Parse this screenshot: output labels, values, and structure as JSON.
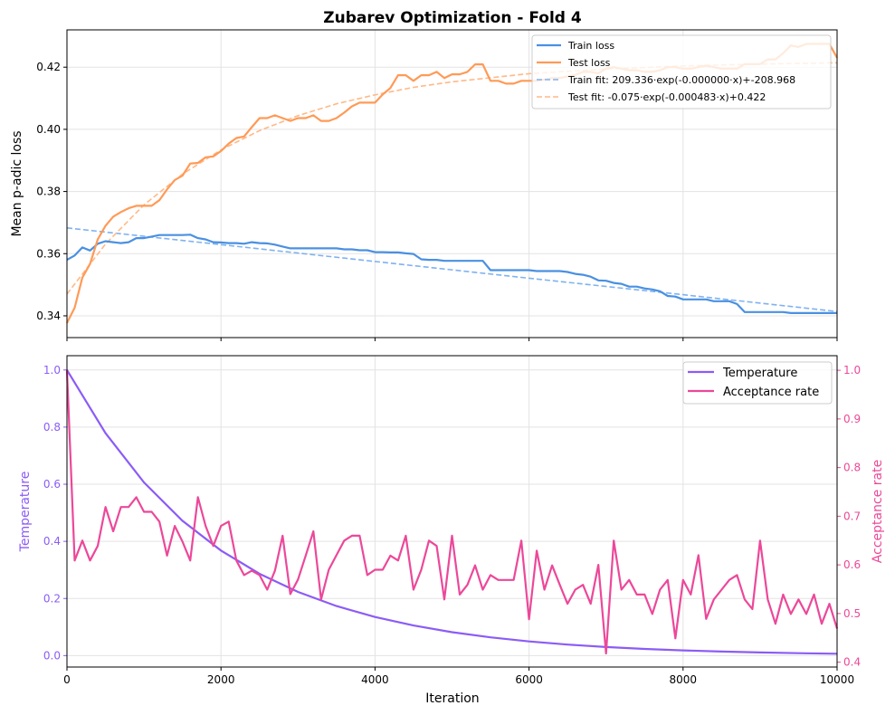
{
  "chart_data": [
    {
      "type": "line",
      "title": "Zubarev Optimization - Fold 4",
      "xlabel": "",
      "ylabel": "Mean p-adic loss",
      "xlim": [
        0,
        10000
      ],
      "ylim": [
        0.333,
        0.432
      ],
      "x_ticks": [
        0,
        2000,
        4000,
        6000,
        8000,
        10000
      ],
      "y_ticks": [
        "0.34",
        "0.36",
        "0.38",
        "0.40",
        "0.42"
      ],
      "grid": true,
      "legend_position": "top-right",
      "colors": {
        "train": "#4a90e2",
        "test": "#ff9a56",
        "train_fit": "#7fb2f0",
        "test_fit": "#ffb987"
      },
      "x": [
        0,
        100,
        200,
        300,
        400,
        500,
        600,
        700,
        800,
        900,
        1000,
        1100,
        1200,
        1300,
        1400,
        1500,
        1600,
        1700,
        1800,
        1900,
        2000,
        2100,
        2200,
        2300,
        2400,
        2500,
        2600,
        2700,
        2800,
        2900,
        3000,
        3100,
        3200,
        3300,
        3400,
        3500,
        3600,
        3700,
        3800,
        3900,
        4000,
        4100,
        4200,
        4300,
        4400,
        4500,
        4600,
        4700,
        4800,
        4900,
        5000,
        5100,
        5200,
        5300,
        5400,
        5500,
        5600,
        5700,
        5800,
        5900,
        6000,
        6100,
        6200,
        6300,
        6400,
        6500,
        6600,
        6700,
        6800,
        6900,
        7000,
        7100,
        7200,
        7300,
        7400,
        7500,
        7600,
        7700,
        7800,
        7900,
        8000,
        8100,
        8200,
        8300,
        8400,
        8500,
        8600,
        8700,
        8800,
        8900,
        9000,
        9100,
        9200,
        9300,
        9400,
        9500,
        9600,
        9700,
        9800,
        9900,
        10000
      ],
      "series": [
        {
          "name": "Train loss",
          "style": "solid",
          "values": [
            0.358,
            0.3594,
            0.362,
            0.361,
            0.3632,
            0.364,
            0.3637,
            0.3634,
            0.3637,
            0.365,
            0.365,
            0.3655,
            0.366,
            0.366,
            0.366,
            0.366,
            0.3661,
            0.365,
            0.3646,
            0.3637,
            0.3636,
            0.3634,
            0.3634,
            0.3632,
            0.3637,
            0.3634,
            0.3633,
            0.3629,
            0.3623,
            0.3617,
            0.3617,
            0.3617,
            0.3617,
            0.3617,
            0.3617,
            0.3617,
            0.3614,
            0.3614,
            0.3611,
            0.3611,
            0.3605,
            0.3605,
            0.3604,
            0.3604,
            0.3601,
            0.3599,
            0.3582,
            0.358,
            0.358,
            0.3577,
            0.3577,
            0.3577,
            0.3577,
            0.3577,
            0.3577,
            0.3547,
            0.3547,
            0.3547,
            0.3547,
            0.3547,
            0.3547,
            0.3544,
            0.3544,
            0.3544,
            0.3544,
            0.3541,
            0.3535,
            0.3532,
            0.3526,
            0.3514,
            0.3513,
            0.3506,
            0.3503,
            0.3494,
            0.3494,
            0.3488,
            0.3485,
            0.3479,
            0.3464,
            0.3462,
            0.3453,
            0.3453,
            0.3453,
            0.3453,
            0.3447,
            0.3447,
            0.3447,
            0.3438,
            0.3412,
            0.3412,
            0.3412,
            0.3412,
            0.3412,
            0.3412,
            0.3409,
            0.3409,
            0.3409,
            0.3409,
            0.3409,
            0.3409,
            0.3409
          ]
        },
        {
          "name": "Test loss",
          "style": "solid",
          "values": [
            0.3377,
            0.3426,
            0.3523,
            0.3567,
            0.3646,
            0.369,
            0.3719,
            0.3734,
            0.3746,
            0.3754,
            0.3754,
            0.3754,
            0.3772,
            0.3807,
            0.3837,
            0.3851,
            0.389,
            0.3892,
            0.391,
            0.3913,
            0.393,
            0.3954,
            0.3972,
            0.3977,
            0.4007,
            0.4036,
            0.4036,
            0.4045,
            0.4036,
            0.4027,
            0.4036,
            0.4036,
            0.4045,
            0.4027,
            0.4027,
            0.4036,
            0.4054,
            0.4074,
            0.4086,
            0.4086,
            0.4086,
            0.4112,
            0.4133,
            0.4174,
            0.4174,
            0.4156,
            0.4174,
            0.4174,
            0.4185,
            0.4165,
            0.4177,
            0.4177,
            0.4185,
            0.4209,
            0.4209,
            0.4156,
            0.4156,
            0.4147,
            0.4147,
            0.4156,
            0.4156,
            0.4156,
            0.416,
            0.4165,
            0.4165,
            0.417,
            0.4175,
            0.4185,
            0.4185,
            0.418,
            0.4195,
            0.42,
            0.4195,
            0.419,
            0.419,
            0.4185,
            0.4185,
            0.419,
            0.42,
            0.42,
            0.4195,
            0.4195,
            0.42,
            0.4205,
            0.42,
            0.4195,
            0.4195,
            0.4195,
            0.421,
            0.421,
            0.421,
            0.4225,
            0.4225,
            0.4245,
            0.427,
            0.4265,
            0.4275,
            0.4275,
            0.4275,
            0.4275,
            0.423
          ]
        },
        {
          "name": "Train fit: 209.336·exp(-0.000000·x)+-208.968",
          "style": "dashed",
          "x": [
            0,
            2000,
            4000,
            6000,
            8000,
            10000
          ],
          "values": [
            0.3683,
            0.3629,
            0.3575,
            0.3521,
            0.3468,
            0.3414
          ]
        },
        {
          "name": "Test fit: -0.075·exp(-0.000483·x)+0.422",
          "style": "dashed",
          "x": [
            0,
            500,
            1000,
            1500,
            2000,
            2500,
            3000,
            3500,
            4000,
            4500,
            5000,
            6000,
            7000,
            8000,
            9000,
            10000
          ],
          "values": [
            0.347,
            0.3631,
            0.3757,
            0.3856,
            0.3934,
            0.3996,
            0.4044,
            0.4082,
            0.4111,
            0.4135,
            0.4153,
            0.4179,
            0.4194,
            0.4204,
            0.421,
            0.4214
          ]
        }
      ]
    },
    {
      "type": "line",
      "xlabel": "Iteration",
      "ylabel": "Temperature",
      "ylabel_right": "Acceptance rate",
      "xlim": [
        0,
        10000
      ],
      "ylim": [
        -0.04,
        1.05
      ],
      "ylim_right": [
        0.39,
        1.03
      ],
      "x_ticks": [
        "0",
        "2000",
        "4000",
        "6000",
        "8000",
        "10000"
      ],
      "y_ticks": [
        "0.0",
        "0.2",
        "0.4",
        "0.6",
        "0.8",
        "1.0"
      ],
      "y_ticks_right": [
        "0.4",
        "0.5",
        "0.6",
        "0.7",
        "0.8",
        "0.9",
        "1.0"
      ],
      "grid": true,
      "legend_position": "top-right",
      "colors": {
        "temperature": "#8b5cf6",
        "acceptance": "#ec4899"
      },
      "series": [
        {
          "name": "Temperature",
          "axis": "left",
          "x": [
            0,
            500,
            1000,
            1500,
            2000,
            2500,
            3000,
            3500,
            4000,
            4500,
            5000,
            5500,
            6000,
            6500,
            7000,
            7500,
            8000,
            8500,
            9000,
            9500,
            10000
          ],
          "values": [
            1.0,
            0.7787,
            0.6064,
            0.4722,
            0.3677,
            0.2863,
            0.223,
            0.1736,
            0.1352,
            0.1053,
            0.082,
            0.0638,
            0.0497,
            0.0387,
            0.0301,
            0.0235,
            0.0183,
            0.0142,
            0.0111,
            0.0086,
            0.0067
          ]
        },
        {
          "name": "Acceptance rate",
          "axis": "right",
          "x_step": 100,
          "values": [
            1.0,
            0.609,
            0.65,
            0.609,
            0.639,
            0.719,
            0.669,
            0.719,
            0.719,
            0.739,
            0.709,
            0.709,
            0.689,
            0.619,
            0.68,
            0.648,
            0.609,
            0.739,
            0.68,
            0.639,
            0.68,
            0.689,
            0.609,
            0.579,
            0.588,
            0.579,
            0.549,
            0.588,
            0.66,
            0.54,
            0.57,
            0.619,
            0.669,
            0.529,
            0.59,
            0.62,
            0.65,
            0.66,
            0.66,
            0.579,
            0.59,
            0.59,
            0.619,
            0.609,
            0.66,
            0.549,
            0.59,
            0.65,
            0.639,
            0.529,
            0.66,
            0.539,
            0.559,
            0.599,
            0.549,
            0.579,
            0.569,
            0.569,
            0.569,
            0.65,
            0.488,
            0.629,
            0.549,
            0.599,
            0.559,
            0.52,
            0.549,
            0.559,
            0.52,
            0.6,
            0.418,
            0.65,
            0.549,
            0.569,
            0.539,
            0.539,
            0.499,
            0.549,
            0.569,
            0.449,
            0.569,
            0.539,
            0.62,
            0.489,
            0.529,
            0.549,
            0.569,
            0.579,
            0.529,
            0.509,
            0.65,
            0.529,
            0.479,
            0.539,
            0.499,
            0.529,
            0.499,
            0.539,
            0.479,
            0.52,
            0.469
          ]
        }
      ]
    }
  ]
}
